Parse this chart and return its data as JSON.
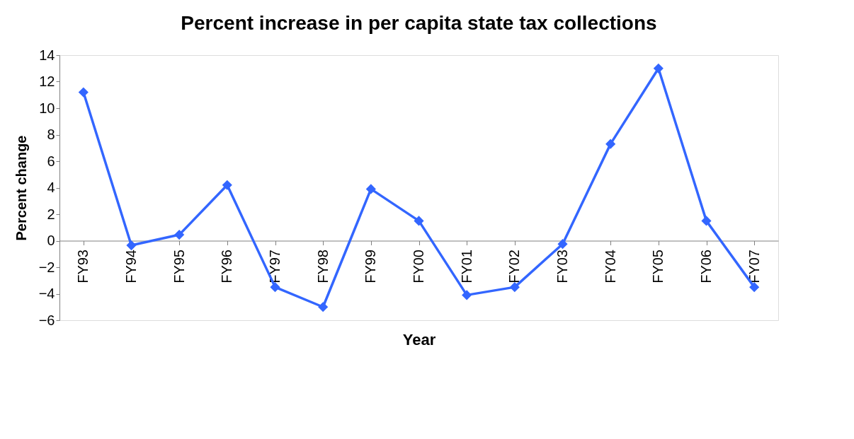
{
  "chart_data": {
    "type": "line",
    "title": "Percent increase in per capita state tax collections",
    "xlabel": "Year",
    "ylabel": "Percent change",
    "categories": [
      "FY93",
      "FY94",
      "FY95",
      "FY96",
      "FY97",
      "FY98",
      "FY99",
      "FY00",
      "FY01",
      "FY02",
      "FY03",
      "FY04",
      "FY05",
      "FY06",
      "FY07"
    ],
    "series": [
      {
        "color": "#3366ff",
        "values": [
          11.2,
          -0.35,
          0.45,
          4.2,
          -3.5,
          -5.0,
          3.9,
          1.5,
          -4.1,
          -3.5,
          -0.25,
          7.3,
          13.0,
          1.5,
          -3.5
        ]
      }
    ],
    "ylim": [
      -6,
      14
    ],
    "yticks": [
      -6,
      -4,
      -2,
      0,
      2,
      4,
      6,
      8,
      10,
      12,
      14
    ],
    "grid": false,
    "marker": "diamond",
    "line_style": "solid"
  }
}
